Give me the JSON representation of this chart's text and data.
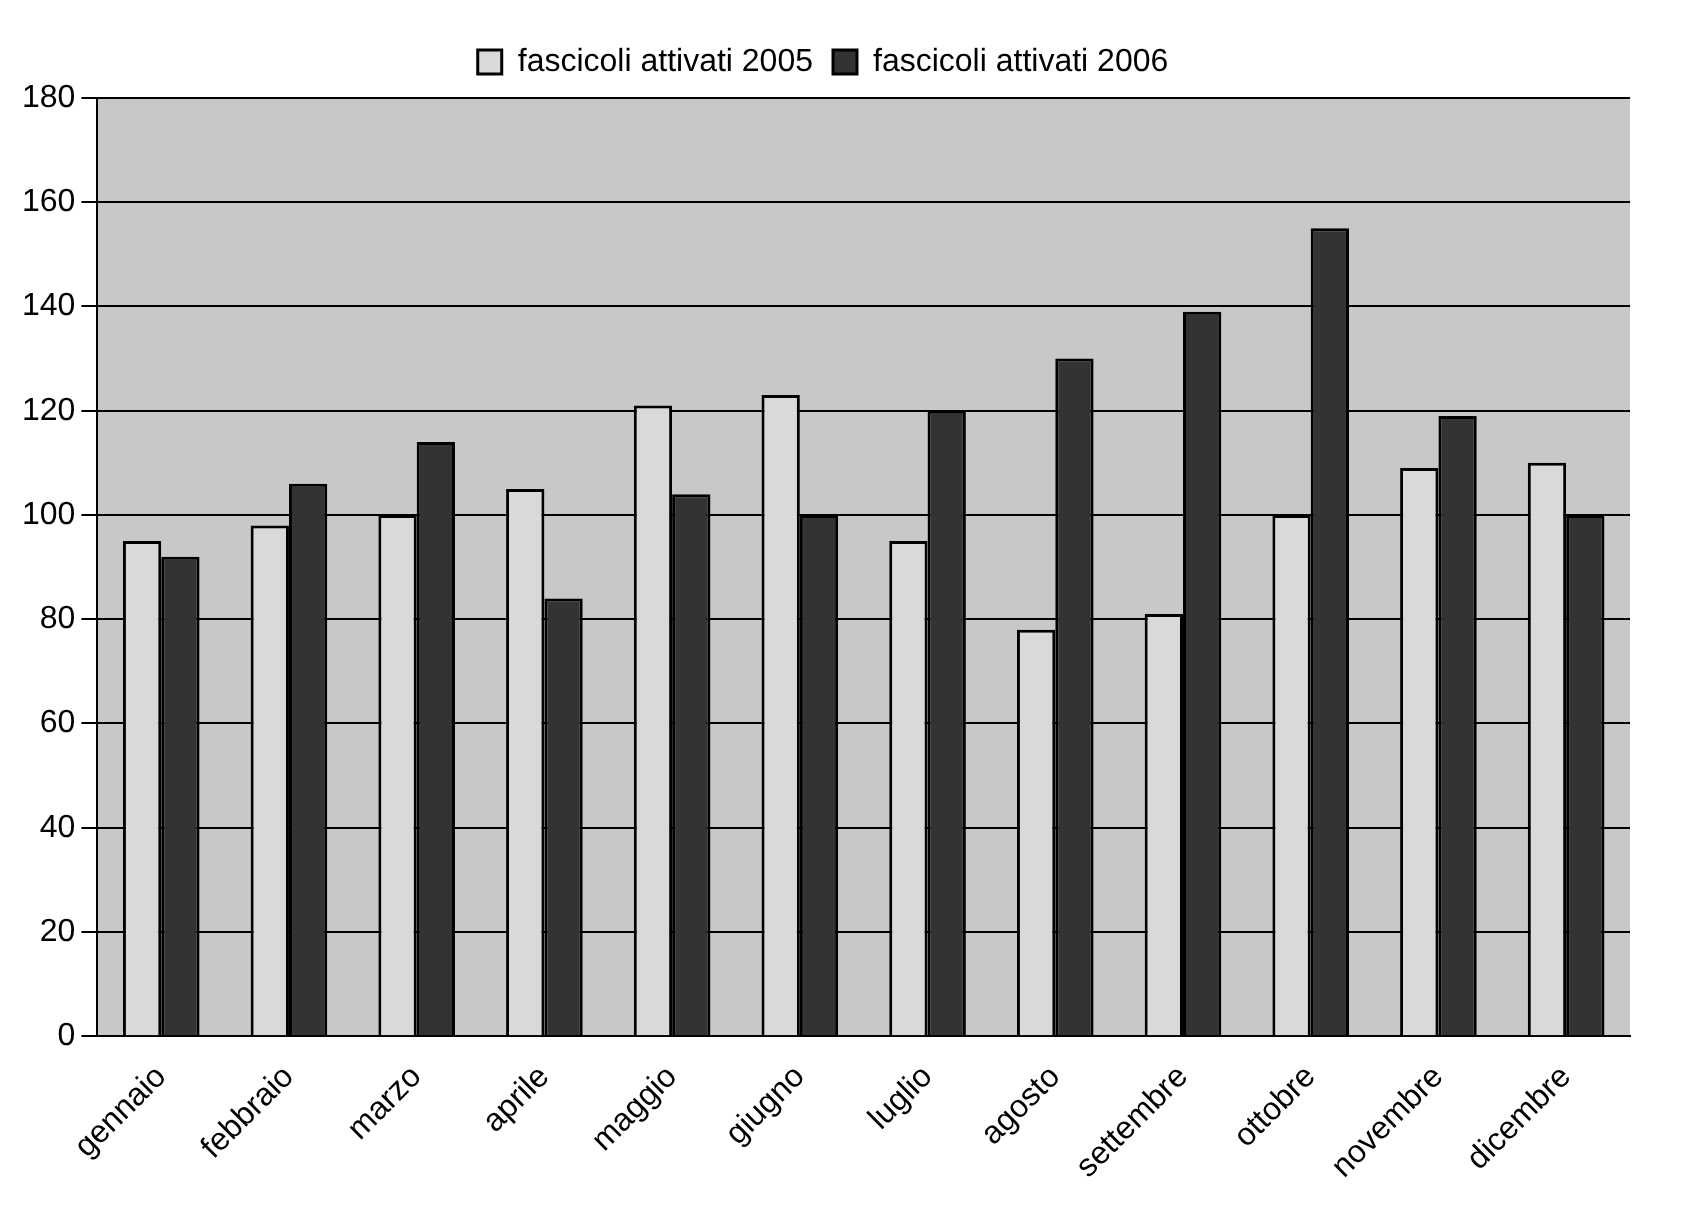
{
  "chart_data": {
    "type": "bar",
    "categories": [
      "gennaio",
      "febbraio",
      "marzo",
      "aprile",
      "maggio",
      "giugno",
      "luglio",
      "agosto",
      "settembre",
      "ottobre",
      "novembre",
      "dicembre"
    ],
    "series": [
      {
        "name": "fascicoli attivati 2005",
        "color": "#d9d9d9",
        "values": [
          95,
          98,
          100,
          105,
          121,
          123,
          95,
          78,
          81,
          100,
          109,
          110
        ]
      },
      {
        "name": "fascicoli attivati 2006",
        "color": "#333333",
        "values": [
          92,
          106,
          114,
          84,
          104,
          100,
          120,
          130,
          139,
          155,
          119,
          100
        ]
      }
    ],
    "ylim": [
      0,
      180
    ],
    "yticks": [
      0,
      20,
      40,
      60,
      80,
      100,
      120,
      140,
      160,
      180
    ],
    "grid": "y",
    "legend": "top"
  }
}
